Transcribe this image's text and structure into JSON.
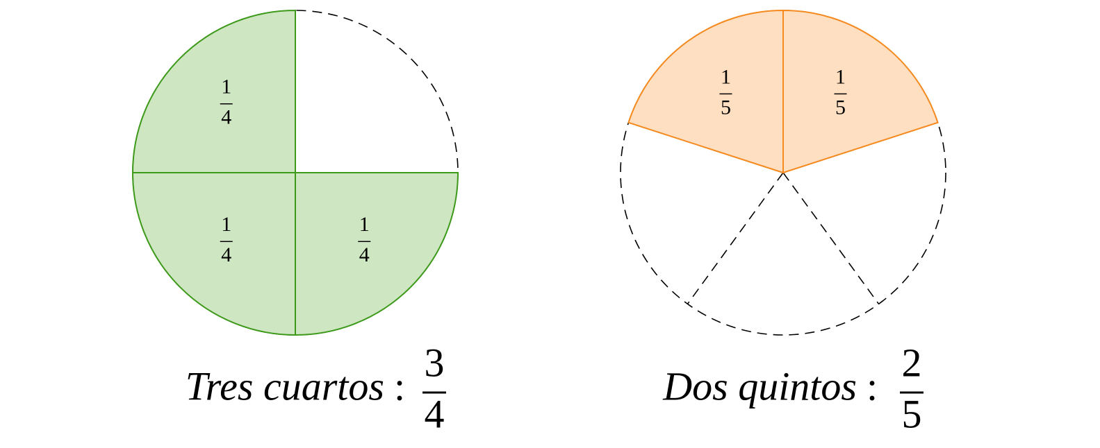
{
  "figures": [
    {
      "caption": "Tres cuartos",
      "separator": ":",
      "fraction": {
        "numerator": 3,
        "denominator": 4
      },
      "sector_labels": [
        {
          "numerator": 1,
          "denominator": 4
        },
        {
          "numerator": 1,
          "denominator": 4
        },
        {
          "numerator": 1,
          "denominator": 4
        }
      ]
    },
    {
      "caption": "Dos quintos",
      "separator": ":",
      "fraction": {
        "numerator": 2,
        "denominator": 5
      },
      "sector_labels": [
        {
          "numerator": 1,
          "denominator": 5
        },
        {
          "numerator": 1,
          "denominator": 5
        }
      ]
    }
  ]
}
